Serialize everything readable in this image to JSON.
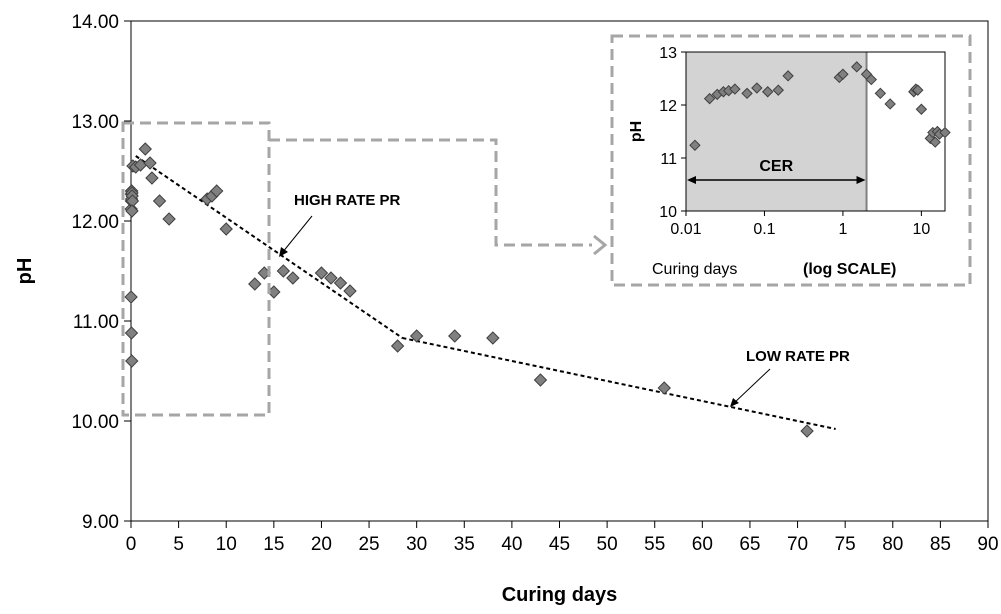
{
  "chart_data": [
    {
      "type": "scatter",
      "title": "",
      "xlabel": "Curing days",
      "ylabel": "pH",
      "xlim": [
        0,
        90
      ],
      "ylim": [
        9,
        14
      ],
      "xticks": [
        0,
        5,
        10,
        15,
        20,
        25,
        30,
        35,
        40,
        45,
        50,
        55,
        60,
        65,
        70,
        75,
        80,
        85,
        90
      ],
      "yticks": [
        "9.00",
        "10.00",
        "11.00",
        "12.00",
        "13.00",
        "14.00"
      ],
      "grid": false,
      "marker_color": "#808080",
      "series": [
        {
          "points": [
            [
              0.01,
              11.24
            ],
            [
              0.02,
              12.12
            ],
            [
              0.03,
              12.2
            ],
            [
              0.04,
              12.27
            ],
            [
              0.05,
              12.3
            ],
            [
              0.06,
              12.22
            ],
            [
              0.08,
              12.3
            ],
            [
              0.1,
              12.28
            ],
            [
              0.12,
              12.25
            ],
            [
              0.15,
              12.2
            ],
            [
              0.2,
              12.55
            ],
            [
              0.05,
              10.88
            ],
            [
              0.08,
              10.6
            ],
            [
              0.1,
              12.1
            ],
            [
              0.5,
              12.54
            ],
            [
              1,
              12.56
            ],
            [
              1.5,
              12.72
            ],
            [
              2,
              12.58
            ],
            [
              2.2,
              12.43
            ],
            [
              3,
              12.2
            ],
            [
              4,
              12.02
            ],
            [
              8,
              12.22
            ],
            [
              8.5,
              12.25
            ],
            [
              9,
              12.3
            ],
            [
              10,
              11.92
            ],
            [
              13,
              11.37
            ],
            [
              14,
              11.48
            ],
            [
              15,
              11.29
            ],
            [
              16,
              11.5
            ],
            [
              17,
              11.43
            ],
            [
              20,
              11.48
            ],
            [
              21,
              11.43
            ],
            [
              22,
              11.38
            ],
            [
              23,
              11.3
            ],
            [
              28,
              10.75
            ],
            [
              30,
              10.85
            ],
            [
              34,
              10.85
            ],
            [
              38,
              10.83
            ],
            [
              43,
              10.41
            ],
            [
              56,
              10.33
            ],
            [
              71,
              9.9
            ]
          ]
        }
      ],
      "trend_lines": [
        {
          "points": [
            [
              0.5,
              12.65
            ],
            [
              28.5,
              10.83
            ]
          ]
        },
        {
          "points": [
            [
              28.5,
              10.83
            ],
            [
              74,
              9.92
            ]
          ]
        }
      ],
      "annotations": [
        "HIGH RATE PR",
        "LOW RATE PR"
      ]
    },
    {
      "type": "scatter",
      "title": "",
      "xlabel": "Curing days",
      "xlabel_suffix": "(log SCALE)",
      "ylabel": "pH",
      "xscale": "log",
      "xlim": [
        0.01,
        20
      ],
      "ylim": [
        10,
        13
      ],
      "xticks": [
        "0.01",
        "0.1",
        "1",
        "10"
      ],
      "yticks": [
        "10",
        "11",
        "12",
        "13"
      ],
      "shaded_region": {
        "x": [
          0.01,
          2
        ],
        "label": "CER",
        "color": "#d3d3d3"
      },
      "series": [
        {
          "points": [
            [
              0.013,
              11.24
            ],
            [
              0.02,
              12.12
            ],
            [
              0.025,
              12.2
            ],
            [
              0.03,
              12.25
            ],
            [
              0.035,
              12.27
            ],
            [
              0.042,
              12.3
            ],
            [
              0.06,
              12.22
            ],
            [
              0.08,
              12.32
            ],
            [
              0.11,
              12.25
            ],
            [
              0.15,
              12.28
            ],
            [
              0.2,
              12.55
            ],
            [
              0.9,
              12.52
            ],
            [
              1.0,
              12.58
            ],
            [
              1.5,
              12.72
            ],
            [
              2.0,
              12.58
            ],
            [
              2.3,
              12.48
            ],
            [
              3.0,
              12.22
            ],
            [
              4.0,
              12.02
            ],
            [
              8.0,
              12.25
            ],
            [
              8.5,
              12.3
            ],
            [
              9.0,
              12.28
            ],
            [
              10.0,
              11.92
            ],
            [
              13.0,
              11.37
            ],
            [
              14.0,
              11.48
            ],
            [
              15.0,
              11.3
            ],
            [
              16.0,
              11.5
            ],
            [
              17.0,
              11.45
            ],
            [
              20.0,
              11.48
            ]
          ]
        }
      ]
    }
  ]
}
